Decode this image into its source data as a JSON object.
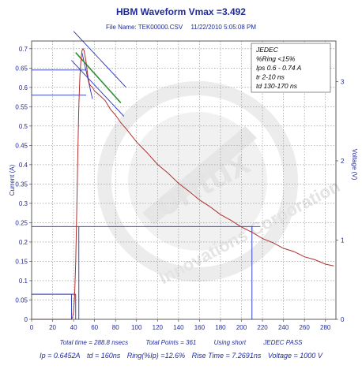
{
  "header": {
    "title": "HBM Waveform Vmax =3.492",
    "file_name": "File Name: TEK00000.CSV",
    "datetime": "11/22/2010 5:05:08 PM"
  },
  "watermark": {
    "brand": "oritux",
    "company": "Innovations Corporation"
  },
  "jedec_box": {
    "lines": [
      "JEDEC",
      "%Ring  <15%",
      "Ips  0.6 - 0.74 A",
      "tr  2-10 ns",
      "td  130-170 ns"
    ]
  },
  "footer": {
    "total_time": "Total time = 288.8 nsecs",
    "total_points": "Total Points = 361",
    "using": "Using short",
    "jedec_status": "JEDEC PASS",
    "ip": "Ip = 0.6452A",
    "td": "td = 160ns",
    "ring": "Ring(%Ip) =12.6%",
    "rise": "Rise Time = 7.2691ns",
    "voltage": "Voltage = 1000 V"
  },
  "colors": {
    "text": "#1f2a9a",
    "waveform": "#b03030",
    "guide_lines": "#2233bb",
    "fit_line": "#2f8f2f",
    "grid": "#8a8a8a"
  },
  "chart_data": {
    "type": "line",
    "xlabel": "",
    "ylabel": "Current (A)",
    "y2label": "Voltage (V)",
    "xlim": [
      0,
      290
    ],
    "ylim": [
      0,
      0.72
    ],
    "y2lim": [
      0,
      3
    ],
    "grid": true,
    "x_ticks": [
      0,
      20,
      40,
      60,
      80,
      100,
      120,
      140,
      160,
      180,
      200,
      220,
      240,
      260,
      280
    ],
    "y_ticks": [
      0,
      0.05,
      0.1,
      0.15,
      0.2,
      0.25,
      0.3,
      0.35,
      0.4,
      0.45,
      0.5,
      0.55,
      0.6,
      0.65,
      0.7
    ],
    "y2_ticks": [
      0,
      1,
      2,
      3
    ],
    "series": [
      {
        "values_x": [
          0,
          38,
          39,
          40,
          41,
          42,
          43,
          44,
          45,
          46,
          47,
          48,
          49,
          50,
          51,
          52,
          53,
          54,
          55,
          56,
          58,
          60,
          62,
          65,
          70,
          75,
          80,
          85,
          90,
          100,
          110,
          120,
          130,
          140,
          150,
          160,
          170,
          180,
          190,
          200,
          210,
          220,
          230,
          240,
          250,
          260,
          270,
          280,
          288
        ],
        "values_y": [
          0,
          0,
          0.005,
          0.02,
          0.06,
          0.15,
          0.28,
          0.42,
          0.55,
          0.63,
          0.67,
          0.695,
          0.7,
          0.695,
          0.68,
          0.665,
          0.64,
          0.622,
          0.61,
          0.605,
          0.6,
          0.59,
          0.585,
          0.58,
          0.565,
          0.545,
          0.527,
          0.51,
          0.492,
          0.46,
          0.43,
          0.402,
          0.377,
          0.353,
          0.33,
          0.31,
          0.29,
          0.272,
          0.255,
          0.24,
          0.224,
          0.21,
          0.197,
          0.185,
          0.174,
          0.163,
          0.153,
          0.144,
          0.137
        ]
      }
    ],
    "reference_lines": {
      "ips_high": 0.645,
      "ips_fit": 0.58,
      "td_level": 0.24,
      "td_x_start": 45,
      "td_x_end": 210,
      "rise_level": 0.065,
      "rise_x_start": 38,
      "rise_x_end": 42
    }
  }
}
